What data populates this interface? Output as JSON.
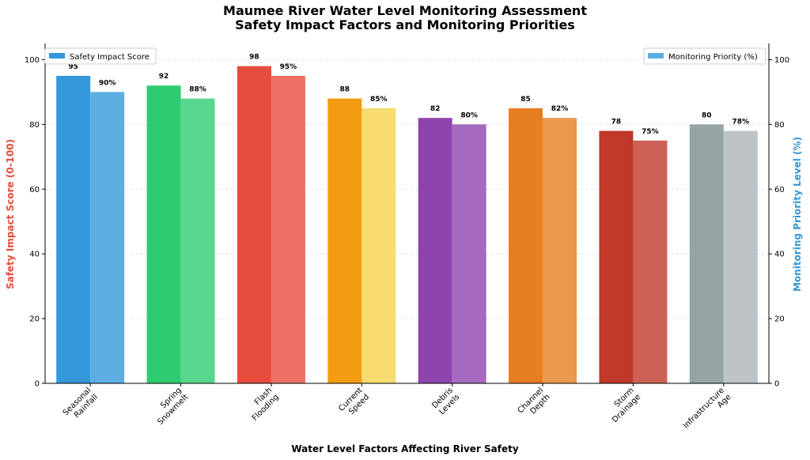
{
  "chart_data": {
    "type": "bar",
    "title_line1": "Maumee River Water Level Monitoring Assessment",
    "title_line2": "Safety Impact Factors and Monitoring Priorities",
    "xlabel": "Water Level Factors Affecting River Safety",
    "ylabel_left": "Safety Impact Score (0-100)",
    "ylabel_right": "Monitoring Priority Level (%)",
    "ylim": [
      0,
      105
    ],
    "yticks": [
      0,
      20,
      40,
      60,
      80,
      100
    ],
    "grid": true,
    "categories": [
      [
        "Seasonal",
        "Rainfall"
      ],
      [
        "Spring",
        "Snowmelt"
      ],
      [
        "Flash",
        "Flooding"
      ],
      [
        "Current",
        "Speed"
      ],
      [
        "Debris",
        "Levels"
      ],
      [
        "Channel",
        "Depth"
      ],
      [
        "Storm",
        "Drainage"
      ],
      [
        "Infrastructure",
        "Age"
      ]
    ],
    "series": [
      {
        "name": "Safety Impact Score",
        "axis": "left",
        "legend_color": "#3498db",
        "legend_position": "top-left",
        "label_suffix": "",
        "values": [
          95,
          92,
          98,
          88,
          82,
          85,
          78,
          80
        ],
        "colors": [
          "#3498db",
          "#2ecc71",
          "#e74c3c",
          "#f39c12",
          "#8e44ad",
          "#e67e22",
          "#c0392b",
          "#95a5a6"
        ]
      },
      {
        "name": "Monitoring Priority (%)",
        "axis": "right",
        "legend_color": "#5dade2",
        "legend_position": "top-right",
        "label_suffix": "%",
        "values": [
          90,
          88,
          95,
          85,
          80,
          82,
          75,
          78
        ],
        "colors": [
          "#5dade2",
          "#58d68d",
          "#ec7063",
          "#f7dc6f",
          "#a569bd",
          "#eb984e",
          "#cd6155",
          "#bdc3c7"
        ]
      }
    ],
    "ylabel_left_color": "#e74c3c",
    "ylabel_right_color": "#3498db"
  }
}
